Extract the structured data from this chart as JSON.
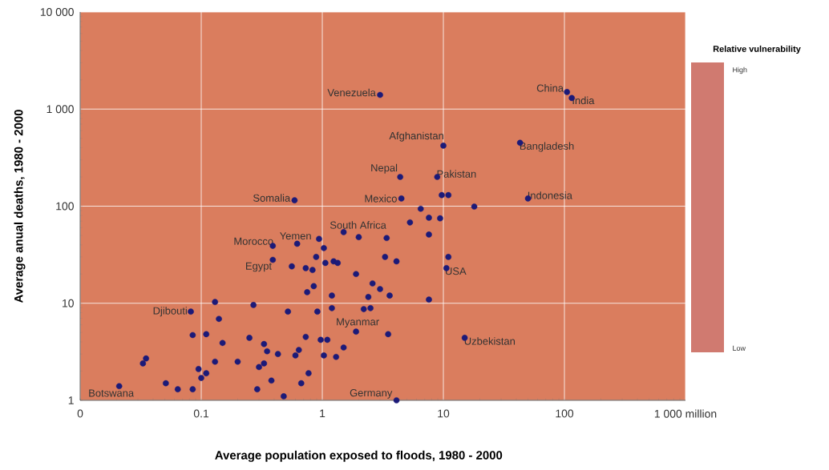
{
  "chart_data": {
    "type": "scatter",
    "xlabel": "Average population exposed to floods, 1980 - 2000",
    "ylabel": "Average anual deaths, 1980 - 2000",
    "clabel": "Relative vulnerability",
    "log": "xy",
    "grid": true,
    "marker": "circle",
    "color": "#1c1a78",
    "xlim": [
      0.01,
      1000
    ],
    "ylim": [
      1,
      10000
    ],
    "xticks": [
      {
        "value": 0.01,
        "label": "0"
      },
      0.1,
      1,
      10,
      100,
      {
        "value": 1000,
        "label": "1 000 million"
      }
    ],
    "yticks": [
      1,
      10,
      100,
      {
        "value": 1000,
        "label": "1 000"
      },
      {
        "value": 10000,
        "label": "10 000"
      }
    ],
    "x": [
      0.39,
      0.39,
      0.13,
      0.27,
      0.082,
      0.14,
      0.085,
      0.11,
      0.15,
      0.25,
      0.33,
      0.35,
      0.43,
      0.13,
      0.2,
      0.33,
      0.3,
      0.033,
      0.035,
      0.095,
      0.1,
      0.11,
      0.38,
      0.021,
      0.051,
      0.064,
      0.085,
      0.29,
      0.48,
      6.5,
      18,
      7.6,
      9.4,
      5.3,
      1.5,
      2.0,
      3.4,
      7.6,
      0.94,
      0.62,
      1.03,
      0.89,
      0.56,
      1.06,
      1.24,
      1.34,
      0.73,
      0.83,
      3.3,
      4.1,
      11,
      10.6,
      1.9,
      0.85,
      0.75,
      1.2,
      2.6,
      3.0,
      3.6,
      2.4,
      7.6,
      0.52,
      0.91,
      1.2,
      2.2,
      2.5,
      1.9,
      3.5,
      15,
      0.73,
      0.97,
      1.1,
      1.5,
      0.64,
      0.6,
      1.03,
      1.3,
      0.77,
      0.67,
      4.1,
      3.0,
      10,
      43,
      4.4,
      8.9,
      9.7,
      11,
      4.5,
      50,
      105,
      115,
      0.59
    ],
    "values": [
      39,
      28,
      10.3,
      9.6,
      8.2,
      6.9,
      4.7,
      4.8,
      3.9,
      4.4,
      3.8,
      3.2,
      3.0,
      2.5,
      2.5,
      2.4,
      2.2,
      2.4,
      2.7,
      2.1,
      1.7,
      1.9,
      1.6,
      1.4,
      1.5,
      1.3,
      1.3,
      1.3,
      1.1,
      94,
      99,
      76,
      75,
      68,
      54,
      48,
      47,
      51,
      46,
      41,
      37,
      30,
      24,
      26,
      27,
      26,
      23,
      22,
      30,
      27,
      30,
      23,
      20,
      15,
      13,
      12,
      16,
      14,
      12,
      11.6,
      10.9,
      8.2,
      8.2,
      8.9,
      8.7,
      8.9,
      5.1,
      4.8,
      4.4,
      4.5,
      4.2,
      4.2,
      3.5,
      3.3,
      2.9,
      2.9,
      2.8,
      1.9,
      1.5,
      1.0,
      1400,
      420,
      450,
      200,
      200,
      130,
      130,
      120,
      120,
      1500,
      1300,
      115
    ],
    "annotations": [
      {
        "text": "Venezuela",
        "x": 3.0,
        "y": 1400
      },
      {
        "text": "China",
        "x": 105,
        "y": 1500
      },
      {
        "text": "India",
        "x": 115,
        "y": 1300
      },
      {
        "text": "Afghanistan",
        "x": 10,
        "y": 420
      },
      {
        "text": "Bangladesh",
        "x": 43,
        "y": 450
      },
      {
        "text": "Nepal",
        "x": 4.4,
        "y": 200
      },
      {
        "text": "Pakistan",
        "x": 8.9,
        "y": 200
      },
      {
        "text": "Somalia",
        "x": 0.59,
        "y": 115
      },
      {
        "text": "Mexico",
        "x": 4.5,
        "y": 120
      },
      {
        "text": "Indonesia",
        "x": 50,
        "y": 120
      },
      {
        "text": "South Africa",
        "x": 1.5,
        "y": 54
      },
      {
        "text": "Yemen",
        "x": 0.62,
        "y": 41
      },
      {
        "text": "Morocco",
        "x": 0.39,
        "y": 39
      },
      {
        "text": "Egypt",
        "x": 0.39,
        "y": 28
      },
      {
        "text": "USA",
        "x": 10.6,
        "y": 23
      },
      {
        "text": "Djibouti",
        "x": 0.082,
        "y": 8.2
      },
      {
        "text": "Myanmar",
        "x": 1.9,
        "y": 5.1
      },
      {
        "text": "Uzbekistan",
        "x": 15,
        "y": 4.4
      },
      {
        "text": "Botswana",
        "x": 0.021,
        "y": 1.4
      },
      {
        "text": "Germany",
        "x": 4.1,
        "y": 1.0
      },
      "High",
      "Low"
    ]
  }
}
